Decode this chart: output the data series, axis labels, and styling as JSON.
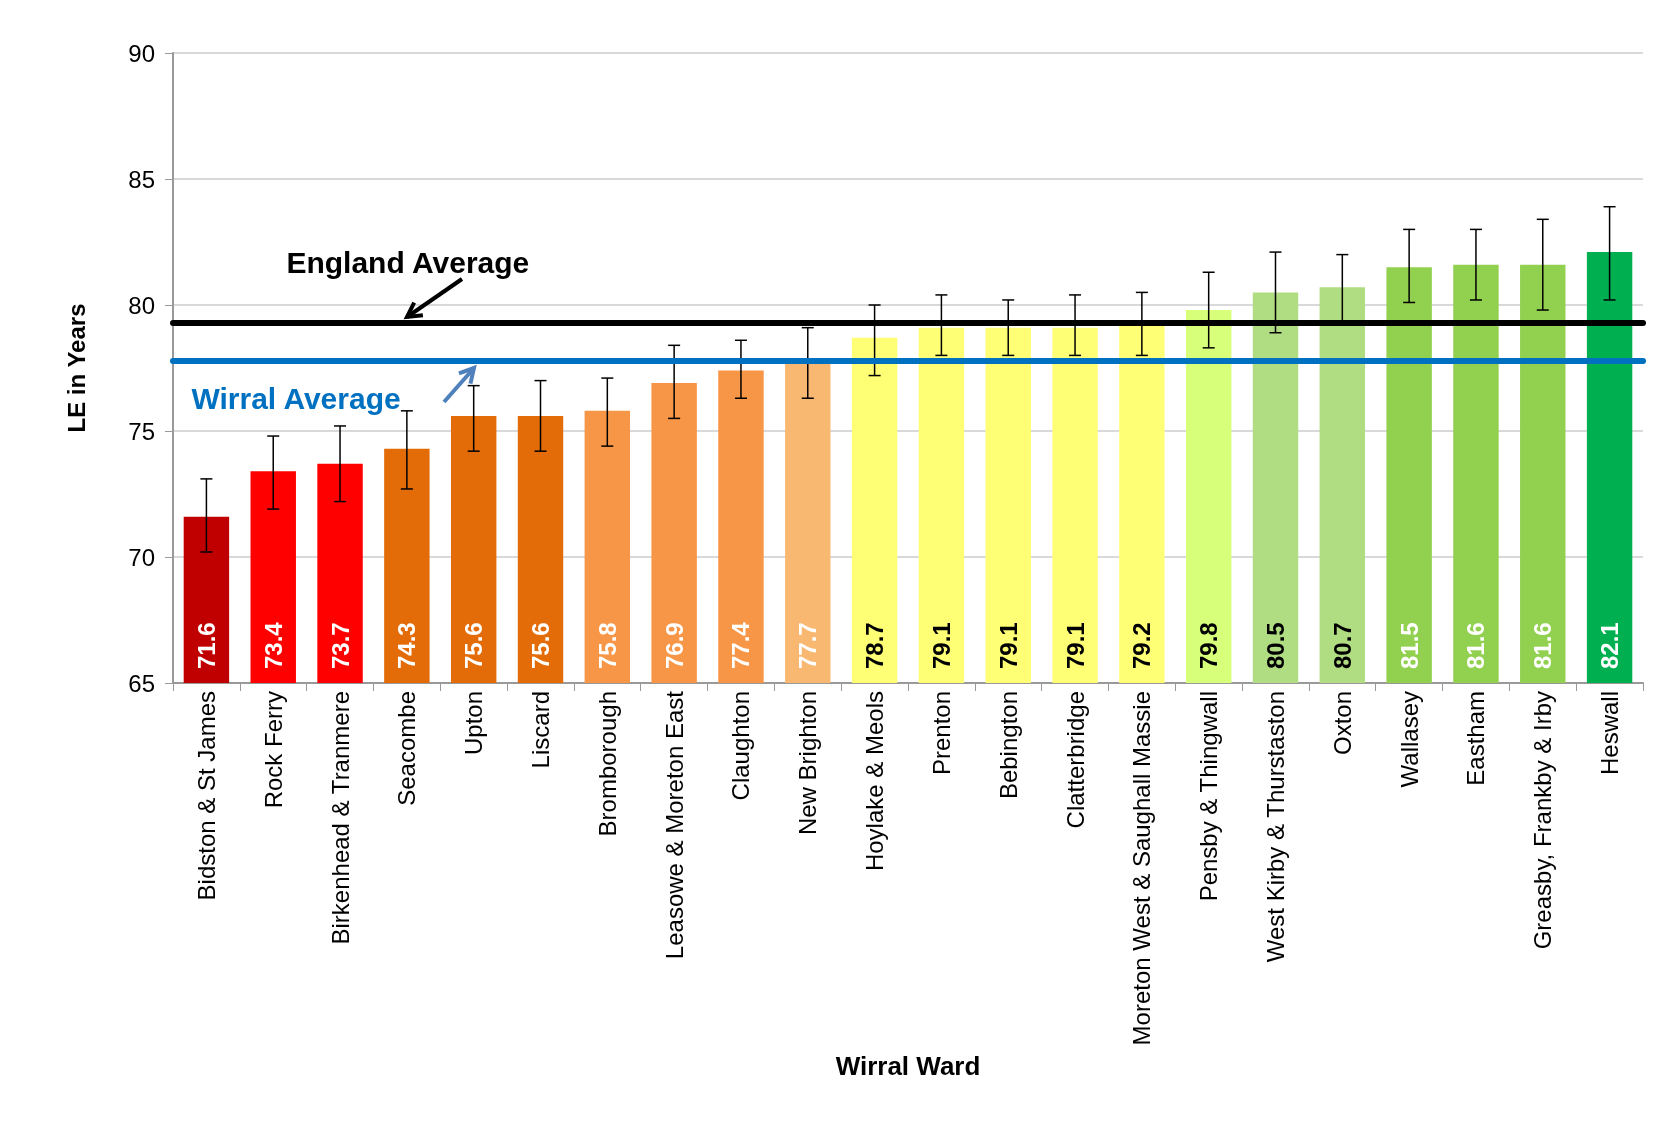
{
  "chart_data": {
    "type": "bar",
    "xlabel": "Wirral Ward",
    "ylabel": "LE in Years",
    "categories": [
      "Bidston & St James",
      "Rock Ferry",
      "Birkenhead & Tranmere",
      "Seacombe",
      "Upton",
      "Liscard",
      "Bromborough",
      "Leasowe & Moreton East",
      "Claughton",
      "New Brighton",
      "Hoylake & Meols",
      "Prenton",
      "Bebington",
      "Clatterbridge",
      "Moreton West & Saughall Massie",
      "Pensby & Thingwall",
      "West Kirby & Thurstaston",
      "Oxton",
      "Wallasey",
      "Eastham",
      "Greasby, Frankby & Irby",
      "Heswall"
    ],
    "values": [
      71.6,
      73.4,
      73.7,
      74.3,
      75.6,
      75.6,
      75.8,
      76.9,
      77.4,
      77.7,
      78.7,
      79.1,
      79.1,
      79.1,
      79.2,
      79.8,
      80.5,
      80.7,
      81.5,
      81.6,
      81.6,
      82.1
    ],
    "colors": [
      "#c00000",
      "#ff0000",
      "#ff0000",
      "#e36c09",
      "#e36c09",
      "#e36c09",
      "#f79646",
      "#f79646",
      "#f79646",
      "#f9b872",
      "#ffff75",
      "#ffff75",
      "#ffff75",
      "#ffff75",
      "#ffff75",
      "#d8ff7a",
      "#b0dc82",
      "#b0dc82",
      "#92d050",
      "#92d050",
      "#92d050",
      "#00b050"
    ],
    "errors": [
      [
        70.2,
        73.1
      ],
      [
        71.9,
        74.8
      ],
      [
        72.2,
        75.2
      ],
      [
        72.7,
        75.8
      ],
      [
        74.2,
        76.8
      ],
      [
        74.2,
        77.0
      ],
      [
        74.4,
        77.1
      ],
      [
        75.5,
        78.4
      ],
      [
        76.3,
        78.6
      ],
      [
        76.3,
        79.1
      ],
      [
        77.2,
        80.0
      ],
      [
        78.0,
        80.4
      ],
      [
        78.0,
        80.2
      ],
      [
        78.0,
        80.4
      ],
      [
        78.0,
        80.5
      ],
      [
        78.3,
        81.3
      ],
      [
        78.9,
        82.1
      ],
      [
        79.3,
        82.0
      ],
      [
        80.1,
        83.0
      ],
      [
        80.2,
        83.0
      ],
      [
        79.8,
        83.4
      ],
      [
        80.2,
        83.9
      ]
    ],
    "ylim": [
      65,
      90
    ],
    "yticks": [
      65,
      70,
      75,
      80,
      85,
      90
    ],
    "grid": "y",
    "data_labels": true,
    "ref_lines": [
      {
        "axis": "y",
        "value": 79.3,
        "label": "England Average",
        "color": "#000000"
      },
      {
        "axis": "y",
        "value": 77.8,
        "label": "Wirral Average",
        "color": "#0070c0"
      }
    ]
  }
}
